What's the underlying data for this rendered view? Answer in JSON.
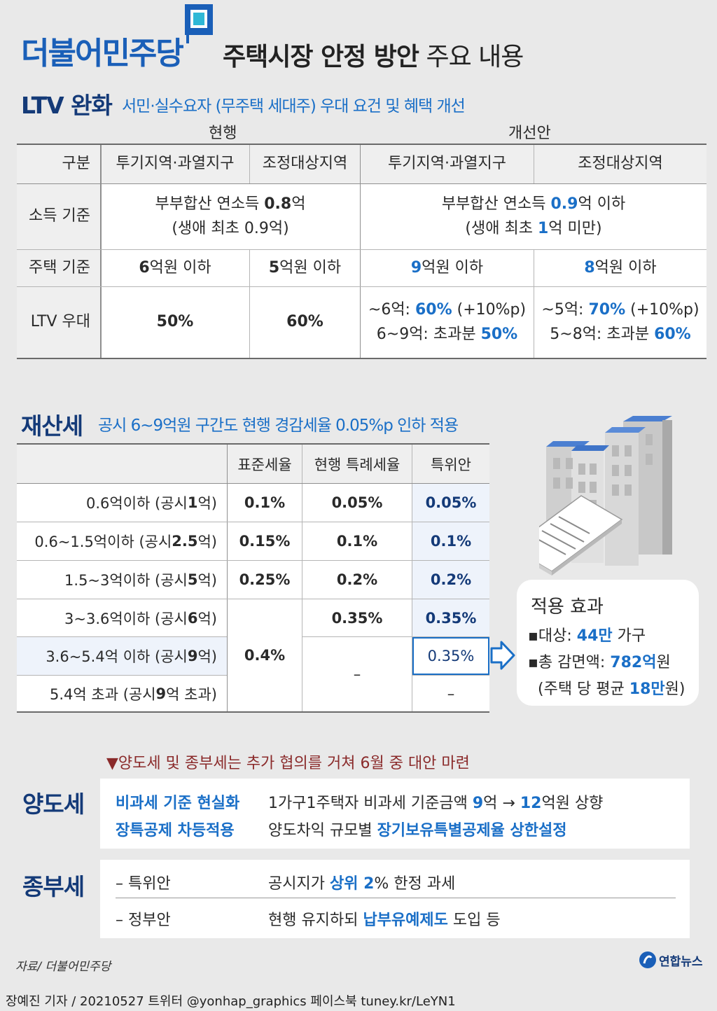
{
  "header": {
    "party": "더불어민주당",
    "title_bold": "주택시장 안정 방안",
    "title_rest": " 주요 내용"
  },
  "ltv": {
    "title": "LTV 완화",
    "subtitle": "서민·실수요자 (무주택 세대주) 우대 요건 및 혜택 개선",
    "group_current": "현행",
    "group_improved": "개선안",
    "col_label": "구분",
    "col_spec": "투기지역·과열지구",
    "col_adj": "조정대상지역",
    "rows": {
      "income": {
        "label": "소득 기준",
        "current_l1_a": "부부합산 연소득 ",
        "current_l1_b": "0.8",
        "current_l1_c": "억",
        "current_l2": "(생애 최초 0.9억)",
        "improved_l1_a": "부부합산 연소득 ",
        "improved_l1_b": "0.9",
        "improved_l1_c": "억 이하",
        "improved_l2_a": "(생애 최초 ",
        "improved_l2_b": "1",
        "improved_l2_c": "억 미만)"
      },
      "house": {
        "label": "주택 기준",
        "cur_spec_a": "6",
        "cur_spec_b": "억원 이하",
        "cur_adj_a": "5",
        "cur_adj_b": "억원 이하",
        "imp_spec_a": "9",
        "imp_spec_b": "억원 이하",
        "imp_adj_a": "8",
        "imp_adj_b": "억원 이하"
      },
      "ltv": {
        "label": "LTV 우대",
        "cur_spec": "50%",
        "cur_adj": "60%",
        "imp_spec_l1_a": "~6억: ",
        "imp_spec_l1_b": "60%",
        "imp_spec_l1_c": " (+10%p)",
        "imp_spec_l2_a": "6~9억: 초과분 ",
        "imp_spec_l2_b": "50%",
        "imp_adj_l1_a": "~5억: ",
        "imp_adj_l1_b": "70%",
        "imp_adj_l1_c": " (+10%p)",
        "imp_adj_l2_a": "5~8억: 초과분 ",
        "imp_adj_l2_b": "60%"
      }
    }
  },
  "property": {
    "title": "재산세",
    "subtitle": "공시 6~9억원 구간도 현행 경감세율 0.05%p 인하 적용",
    "headers": [
      "표준세율",
      "현행 특례세율",
      "특위안"
    ],
    "rows": [
      {
        "range": "0.6억이하 (공시 ",
        "pub": "1",
        "unit": "억)",
        "standard": "0.1%",
        "current": "0.05%",
        "proposal": "0.05%"
      },
      {
        "range": "0.6~1.5억이하 (공시 ",
        "pub": "2.5",
        "unit": "억)",
        "standard": "0.15%",
        "current": "0.1%",
        "proposal": "0.1%"
      },
      {
        "range": "1.5~3억이하 (공시 ",
        "pub": "5",
        "unit": "억)",
        "standard": "0.25%",
        "current": "0.2%",
        "proposal": "0.2%"
      },
      {
        "range": "3~3.6억이하 (공시 ",
        "pub": "6",
        "unit": "억)",
        "standard": "",
        "current": "0.35%",
        "proposal": "0.35%"
      },
      {
        "range": "3.6~5.4억 이하 (공시 ",
        "pub": "9",
        "unit": "억)",
        "standard": "0.4%",
        "current": "",
        "proposal": "0.35%"
      },
      {
        "range": "5.4억 초과 (공시 ",
        "pub": "9",
        "unit": "억 초과)",
        "standard": "",
        "current": "–",
        "proposal": "–"
      }
    ]
  },
  "effect": {
    "title": "적용 효과",
    "target_label": "▪대상: ",
    "target_value": "44만",
    "target_unit": " 가구",
    "reduction_label": "▪총 감면액: ",
    "reduction_value": "782억",
    "reduction_unit": "원",
    "avg_a": "(주택 당 평균 ",
    "avg_value": "18만",
    "avg_b": "원)"
  },
  "note": "▼양도세 및 종부세는 추가 협의를 거쳐 6월 중 대안 마련",
  "transfer_tax": {
    "label": "양도세",
    "item1_key": "비과세 기준 현실화",
    "item1_a": "1가구1주택자 비과세 기준금액 ",
    "item1_b": "9",
    "item1_c": "억 → ",
    "item1_d": "12",
    "item1_e": "억원 상향",
    "item2_key": "장특공제 차등적용",
    "item2_a": "양도차익 규모별 ",
    "item2_b": "장기보유특별공제율 상한설정"
  },
  "comprehensive_tax": {
    "label": "종부세",
    "item1_key": "– 특위안",
    "item1_a": "공시지가 ",
    "item1_b": "상위 2",
    "item1_c": "% 한정 과세",
    "item2_key": "– 정부안",
    "item2_a": "현행 유지하되 ",
    "item2_b": "납부유예제도",
    "item2_c": " 도입 등"
  },
  "footer": {
    "source": "자료/ 더불어민주당",
    "logo_text": "연합뉴스",
    "credit": "장예진 기자 / 20210527 트위터 @yonhap_graphics  페이스북 tuney.kr/LeYN1"
  },
  "colors": {
    "party_blue": "#1a5fb8",
    "navy": "#143a78",
    "accent_blue": "#1a6fc7",
    "background": "#e9e9e9",
    "highlight_cell": "#eef3fb"
  }
}
